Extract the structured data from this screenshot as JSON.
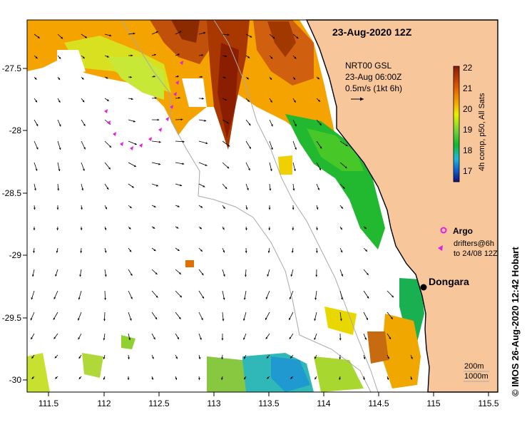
{
  "map": {
    "date_title": "23-Aug-2020 12Z",
    "current_info": {
      "line1": "NRT00 GSL",
      "line2": "23-Aug 06:00Z",
      "line3": "0.5m/s (1kt 6h)"
    },
    "colorbar": {
      "title": "4h comp, p50, All Sats",
      "min": 17,
      "max": 22,
      "tick_labels": [
        "22",
        "21",
        "20",
        "19",
        "18",
        "17"
      ]
    },
    "legend": {
      "argo_label": "Argo",
      "drifters_line1": "drifters@6h",
      "drifters_line2": "to 24/08 12Z"
    },
    "place_label": "Dongara",
    "contour_labels": {
      "c200": "200m",
      "c1000": "1000m"
    },
    "credit": "© IMOS 26-Aug-2020 12:42 Hobart",
    "lon_ticks": [
      "111.5",
      "112",
      "112.5",
      "113",
      "113.5",
      "114",
      "114.5",
      "115",
      "115.5"
    ],
    "lat_ticks": [
      "-27.5",
      "-28",
      "-28.5",
      "-29",
      "-29.5",
      "-30"
    ]
  },
  "colors": {
    "land": "#f8c69b",
    "drifter_track": "#e020e0",
    "frame": "#000000"
  }
}
